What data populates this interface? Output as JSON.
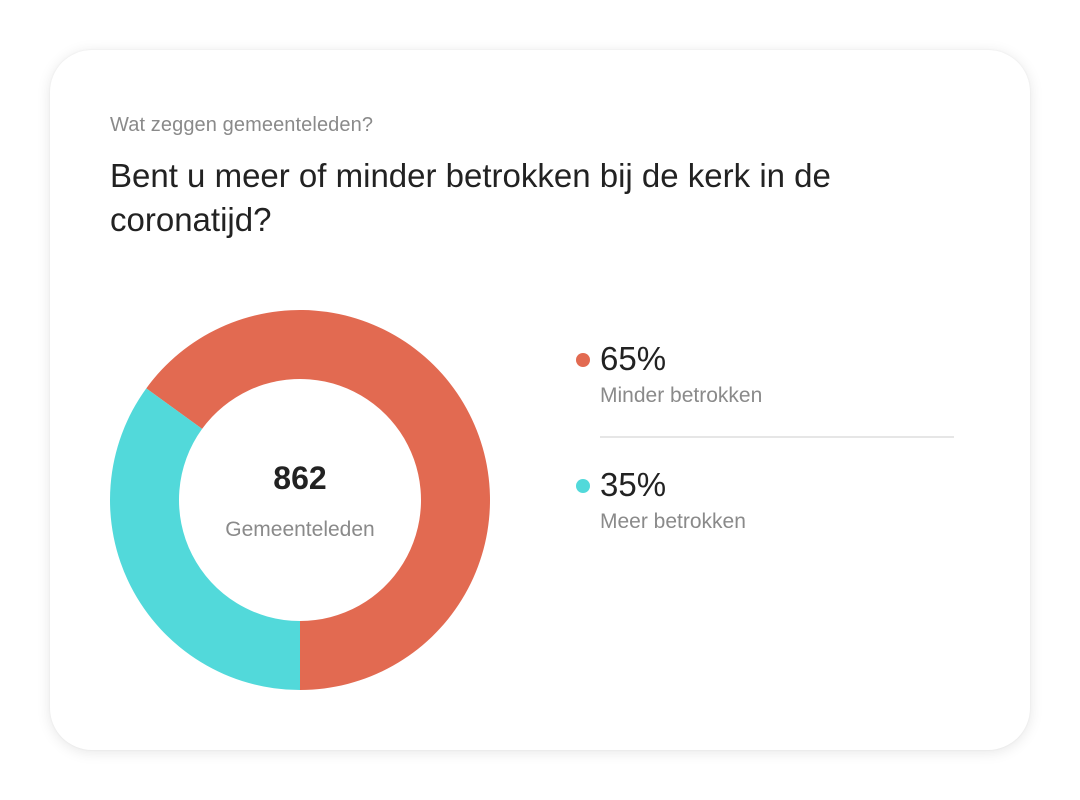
{
  "card": {
    "subtitle": "Wat zeggen gemeenteleden?",
    "question": "Bent u meer of minder betrokken bij de kerk in de coronatijd?"
  },
  "center": {
    "total": "862",
    "label": "Gemeenteleden"
  },
  "legend": [
    {
      "value_text": "65%",
      "label": "Minder betrokken",
      "color": "#E26A51"
    },
    {
      "value_text": "35%",
      "label": "Meer betrokken",
      "color": "#52D9DA"
    }
  ],
  "chart_data": {
    "type": "pie",
    "donut": true,
    "title": "Bent u meer of minder betrokken bij de kerk in de coronatijd?",
    "categories": [
      "Minder betrokken",
      "Meer betrokken"
    ],
    "values": [
      65,
      35
    ],
    "unit": "%",
    "colors": [
      "#E26A51",
      "#52D9DA"
    ],
    "center_total": 862,
    "center_label": "Gemeenteleden",
    "legend_position": "right"
  }
}
